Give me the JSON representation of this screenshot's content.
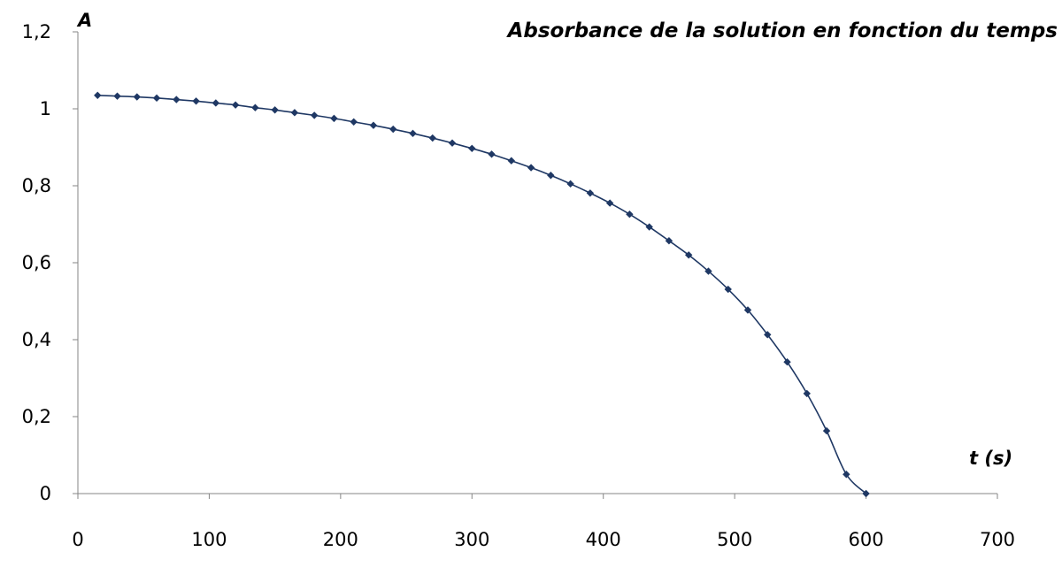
{
  "chart_data": {
    "type": "scatter",
    "title": "Absorbance de la solution en fonction du temps",
    "xlabel": "t (s)",
    "ylabel": "A",
    "xlim": [
      0,
      700
    ],
    "ylim": [
      0,
      1.2
    ],
    "x_ticks": [
      "0",
      "100",
      "200",
      "300",
      "400",
      "500",
      "600",
      "700"
    ],
    "y_ticks": [
      "0",
      "0,2",
      "0,4",
      "0,6",
      "0,8",
      "1",
      "1,2"
    ],
    "grid": false,
    "legend": "none",
    "line_color": "#1F3864",
    "marker_color": "#1F3864",
    "series": [
      {
        "marker": "diamond",
        "smooth": true,
        "x": [
          15,
          30,
          45,
          60,
          75,
          90,
          105,
          120,
          135,
          150,
          165,
          180,
          195,
          210,
          225,
          240,
          255,
          270,
          285,
          300,
          315,
          330,
          345,
          360,
          375,
          390,
          405,
          420,
          435,
          450,
          465,
          480,
          495,
          510,
          525,
          540,
          555,
          570,
          585,
          600
        ],
        "y": [
          1.035,
          1.033,
          1.031,
          1.028,
          1.024,
          1.02,
          1.015,
          1.01,
          1.003,
          0.997,
          0.99,
          0.983,
          0.975,
          0.966,
          0.957,
          0.947,
          0.936,
          0.924,
          0.911,
          0.897,
          0.882,
          0.865,
          0.847,
          0.827,
          0.805,
          0.781,
          0.755,
          0.726,
          0.693,
          0.657,
          0.62,
          0.578,
          0.531,
          0.477,
          0.413,
          0.342,
          0.26,
          0.163,
          0.05,
          0.0
        ]
      }
    ]
  }
}
